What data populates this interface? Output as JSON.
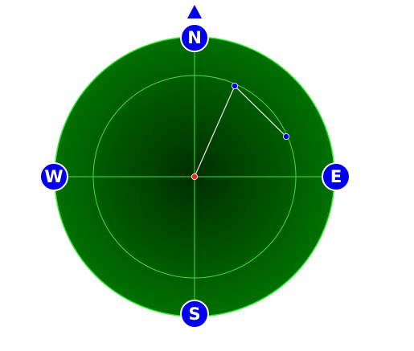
{
  "compass": {
    "cardinals": {
      "north": "N",
      "east": "E",
      "south": "S",
      "west": "W"
    },
    "colors": {
      "dial_outer": "#007000",
      "dial_center": "#002e00",
      "dial_rim": "#2ee62e",
      "grid_line": "#44dd44",
      "cardinal_badge": "#0000ee",
      "badge_border": "#ffffff",
      "north_pointer": "#0000ee",
      "center_point": "#ee2222",
      "waypoint": "#0000ee",
      "track_line": "#dddddd"
    },
    "icons": {
      "north_pointer": "triangle-up-icon",
      "center": "red-dot-icon",
      "waypoints": "blue-dot-icon"
    }
  }
}
